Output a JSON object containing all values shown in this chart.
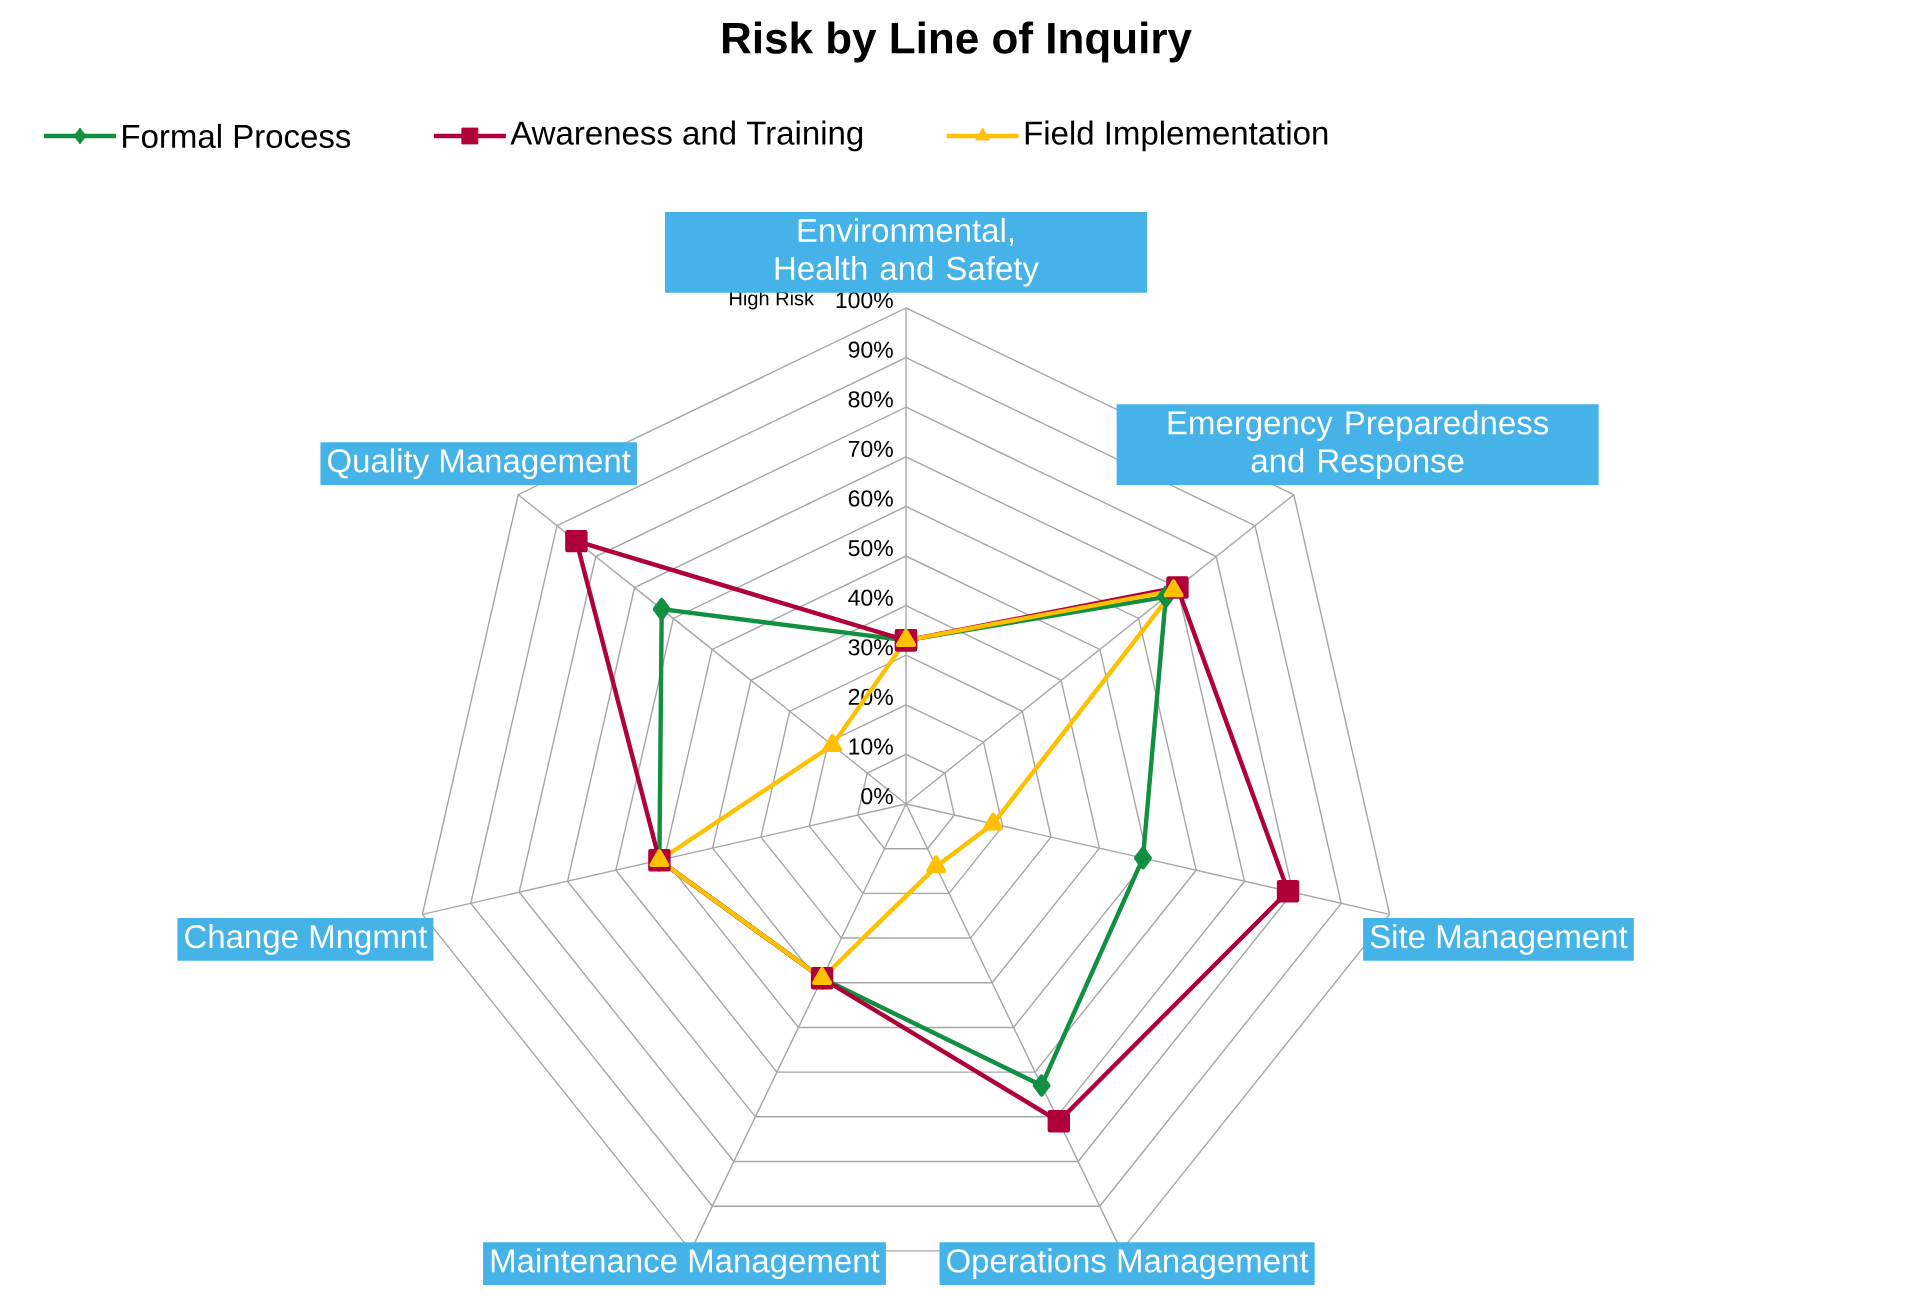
{
  "chart_data": {
    "type": "radar",
    "title": "Risk by Line of Inquiry",
    "categories": [
      "Environmental, Health and Safety",
      "Emergency Preparedness and Response",
      "Site Management",
      "Operations Management",
      "Maintenance Management",
      "Change Mngmnt",
      "Quality Management"
    ],
    "series": [
      {
        "name": "Formal Process",
        "color": "#109040",
        "marker": "diamond",
        "values": [
          33,
          67,
          49,
          63,
          39,
          51,
          63
        ]
      },
      {
        "name": "Awareness and Training",
        "color": "#b0003a",
        "marker": "square",
        "values": [
          33,
          70,
          79,
          71,
          39,
          51,
          85
        ]
      },
      {
        "name": "Field Implementation",
        "color": "#ffc000",
        "marker": "triangle",
        "values": [
          33,
          69,
          18,
          14,
          39,
          51,
          19
        ]
      }
    ],
    "ylim": [
      0,
      100
    ],
    "yticks": [
      {
        "value": 0,
        "label": "0%"
      },
      {
        "value": 10,
        "label": "10%"
      },
      {
        "value": 20,
        "label": "20%"
      },
      {
        "value": 30,
        "label": "30%"
      },
      {
        "value": 40,
        "label": "40%"
      },
      {
        "value": 50,
        "label": "50%"
      },
      {
        "value": 60,
        "label": "60%"
      },
      {
        "value": 70,
        "label": "70%"
      },
      {
        "value": 80,
        "label": "80%"
      },
      {
        "value": 90,
        "label": "90%"
      },
      {
        "value": 100,
        "label": "100%"
      }
    ],
    "annotations": [
      "High Risk"
    ],
    "grid": true,
    "legend": "top"
  }
}
